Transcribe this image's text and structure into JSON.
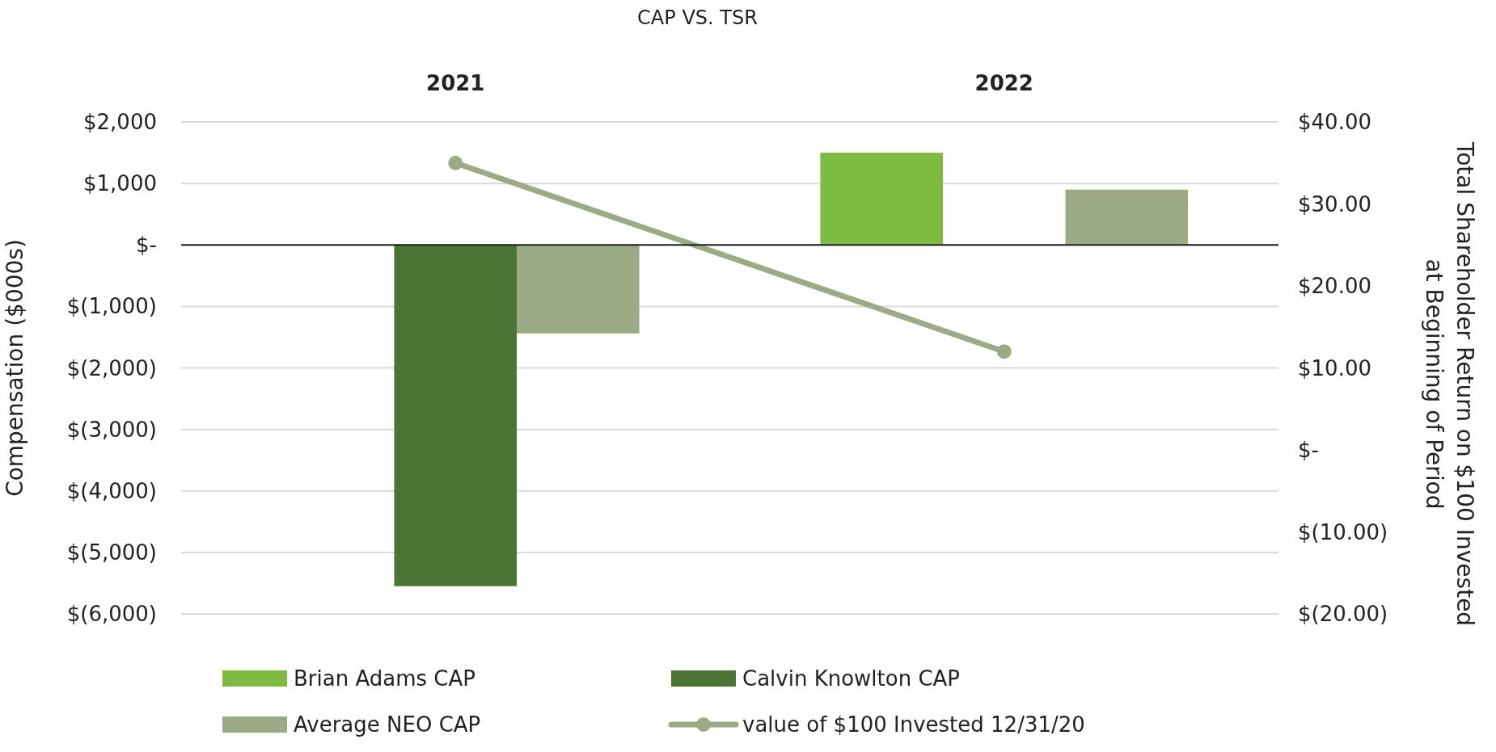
{
  "chart_data": {
    "type": "bar",
    "title": "CAP VS. TSR",
    "categories": [
      "2021",
      "2022"
    ],
    "ylabel": "Compensation ($000s)",
    "y2label": "Total Shareholder Return on $100 Invested at Beginning of Period",
    "series": [
      {
        "name": "Brian Adams CAP",
        "color": "#7dbb42",
        "values": [
          null,
          1500
        ]
      },
      {
        "name": "Calvin Knowlton CAP",
        "color": "#4a7535",
        "values": [
          -5550,
          null
        ]
      },
      {
        "name": "Average NEO CAP",
        "color": "#9caa85",
        "values": [
          -1440,
          900
        ]
      },
      {
        "name": "value of $100 Invested 12/31/20",
        "type": "line",
        "axis": "y2",
        "color": "#9caa85",
        "marker": "circle",
        "values": [
          35,
          12
        ]
      }
    ],
    "ylim": [
      -6000,
      2000
    ],
    "yticks": [
      {
        "value": -6000,
        "label": "$(6,000)"
      },
      {
        "value": -5000,
        "label": "$(5,000)"
      },
      {
        "value": -4000,
        "label": "$(4,000)"
      },
      {
        "value": -3000,
        "label": "$(3,000)"
      },
      {
        "value": -2000,
        "label": "$(2,000)"
      },
      {
        "value": -1000,
        "label": "$(1,000)"
      },
      {
        "value": 0,
        "label": "$-"
      },
      {
        "value": 1000,
        "label": "$1,000"
      },
      {
        "value": 2000,
        "label": "$2,000"
      }
    ],
    "y2lim": [
      -20,
      40
    ],
    "y2ticks": [
      {
        "value": -20,
        "label": "$(20.00)"
      },
      {
        "value": -10,
        "label": "$(10.00)"
      },
      {
        "value": 0,
        "label": "$-"
      },
      {
        "value": 10,
        "label": "$10.00"
      },
      {
        "value": 20,
        "label": "$20.00"
      },
      {
        "value": 30,
        "label": "$30.00"
      },
      {
        "value": 40,
        "label": "$40.00"
      }
    ],
    "grid": "y",
    "legend": "bottom"
  }
}
